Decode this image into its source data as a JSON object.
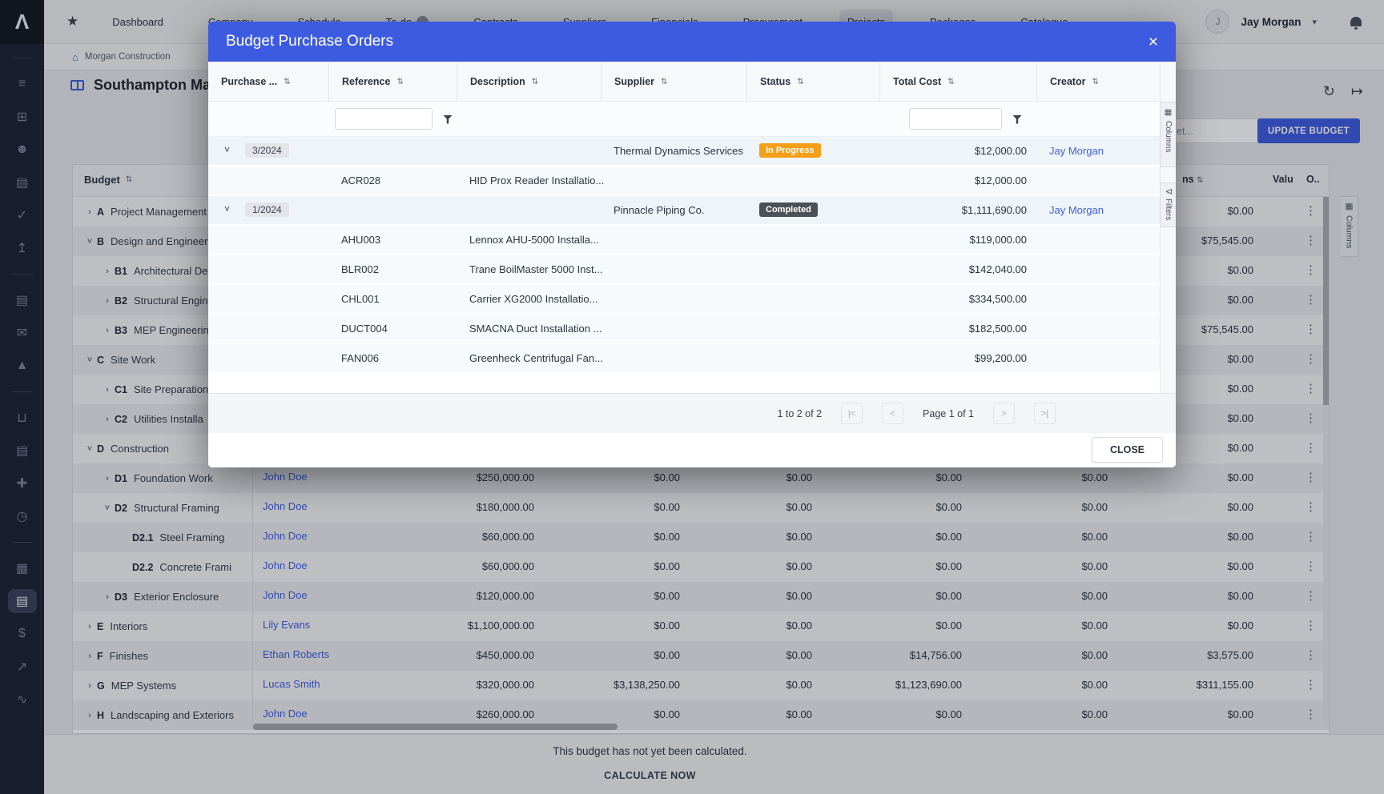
{
  "icons": {
    "star": "★",
    "bell": "bell",
    "chevron_down": "˅",
    "chevron_right": "›",
    "close": "×",
    "kebab": "⋮",
    "sort": "⇅",
    "refresh": "↻",
    "export": "↦",
    "bank": "⌂",
    "columns_tab": "▦",
    "filter_tab": "∇"
  },
  "colors": {
    "accent": "#3d5be0",
    "modal_header": "#3d5be0",
    "link": "#3f5dde",
    "in_progress": "#f59e18",
    "completed": "#4b5157"
  },
  "topnav": {
    "active": "Projects",
    "items": [
      {
        "label": "Dashboard"
      },
      {
        "label": "Company"
      },
      {
        "label": "Schedule"
      },
      {
        "label": "To-do",
        "badge": ""
      },
      {
        "label": "Contracts"
      },
      {
        "label": "Suppliers"
      },
      {
        "label": "Financials"
      },
      {
        "label": "Procurement"
      },
      {
        "label": "Projects"
      },
      {
        "label": "Packages"
      },
      {
        "label": "Catalogue"
      }
    ],
    "user": {
      "initial": "J",
      "name": "Jay Morgan"
    }
  },
  "sidebar": {
    "items": [
      {
        "type": "divider"
      },
      {
        "name": "sidebar-list-icon",
        "glyph": "≡"
      },
      {
        "name": "sidebar-workflow-icon",
        "glyph": "⊞"
      },
      {
        "name": "sidebar-people-icon",
        "glyph": "☻"
      },
      {
        "name": "sidebar-document-icon",
        "glyph": "▤"
      },
      {
        "name": "sidebar-approvals-icon",
        "glyph": "✓"
      },
      {
        "name": "sidebar-file-upload-icon",
        "glyph": "↥"
      },
      {
        "type": "divider"
      },
      {
        "name": "sidebar-contracts-icon",
        "glyph": "▤"
      },
      {
        "name": "sidebar-chat-icon",
        "glyph": "✉"
      },
      {
        "name": "sidebar-risk-icon",
        "glyph": "▲"
      },
      {
        "type": "divider"
      },
      {
        "name": "sidebar-procurement-icon",
        "glyph": "⊔"
      },
      {
        "name": "sidebar-invoices-icon",
        "glyph": "▤"
      },
      {
        "name": "sidebar-integrations-icon",
        "glyph": "✚"
      },
      {
        "name": "sidebar-time-icon",
        "glyph": "◷"
      },
      {
        "type": "divider"
      },
      {
        "name": "sidebar-dashboard-icon",
        "glyph": "▦"
      },
      {
        "name": "sidebar-budget-icon",
        "glyph": "▤",
        "active": true
      },
      {
        "name": "sidebar-finance-icon",
        "glyph": "$"
      },
      {
        "name": "sidebar-trend-icon",
        "glyph": "↗"
      },
      {
        "name": "sidebar-activity-icon",
        "glyph": "∿"
      }
    ]
  },
  "page": {
    "breadcrumb": "Morgan Construction",
    "title": "Southampton Ma",
    "search_value": "et...",
    "update_button": "UPDATE BUDGET",
    "columns_tab": "Columns",
    "note": "This budget has not yet been calculated.",
    "calculate_button": "CALCULATE NOW"
  },
  "budget_table": {
    "header": "Budget",
    "header_fragments": [
      "ns",
      "Valu",
      "O.."
    ],
    "rows": [
      {
        "code": "A",
        "name": "Project Management",
        "level": 0,
        "chevron": "›",
        "owner": "",
        "values": [
          "",
          "",
          "",
          "",
          "",
          "$0.00"
        ]
      },
      {
        "code": "B",
        "name": "Design and Engineering",
        "level": 0,
        "chevron": "˅",
        "owner": "",
        "values": [
          "",
          "",
          "",
          "",
          "",
          "$75,545.00"
        ]
      },
      {
        "code": "B1",
        "name": "Architectural De",
        "level": 1,
        "chevron": "›",
        "owner": "",
        "values": [
          "",
          "",
          "",
          "",
          "",
          "$0.00"
        ]
      },
      {
        "code": "B2",
        "name": "Structural Engin",
        "level": 1,
        "chevron": "›",
        "owner": "",
        "values": [
          "",
          "",
          "",
          "",
          "",
          "$0.00"
        ]
      },
      {
        "code": "B3",
        "name": "MEP Engineerin",
        "level": 1,
        "chevron": "›",
        "owner": "",
        "values": [
          "",
          "",
          "",
          "",
          "",
          "$75,545.00"
        ]
      },
      {
        "code": "C",
        "name": "Site Work",
        "level": 0,
        "chevron": "˅",
        "owner": "",
        "values": [
          "",
          "",
          "",
          "",
          "",
          "$0.00"
        ]
      },
      {
        "code": "C1",
        "name": "Site Preparation",
        "level": 1,
        "chevron": "›",
        "owner": "",
        "values": [
          "",
          "",
          "",
          "",
          "",
          "$0.00"
        ]
      },
      {
        "code": "C2",
        "name": "Utilities Installa",
        "level": 1,
        "chevron": "›",
        "owner": "",
        "values": [
          "",
          "",
          "",
          "",
          "",
          "$0.00"
        ]
      },
      {
        "code": "D",
        "name": "Construction",
        "level": 0,
        "chevron": "˅",
        "owner": "",
        "values": [
          "",
          "",
          "",
          "",
          "",
          "$0.00"
        ]
      },
      {
        "code": "D1",
        "name": "Foundation Work",
        "level": 1,
        "chevron": "›",
        "owner": "John Doe",
        "values": [
          "$250,000.00",
          "$0.00",
          "$0.00",
          "$0.00",
          "$0.00",
          "$0.00"
        ]
      },
      {
        "code": "D2",
        "name": "Structural Framing",
        "level": 1,
        "chevron": "˅",
        "owner": "John Doe",
        "values": [
          "$180,000.00",
          "$0.00",
          "$0.00",
          "$0.00",
          "$0.00",
          "$0.00"
        ]
      },
      {
        "code": "D2.1",
        "name": "Steel Framing",
        "level": 2,
        "chevron": "",
        "owner": "John Doe",
        "values": [
          "$60,000.00",
          "$0.00",
          "$0.00",
          "$0.00",
          "$0.00",
          "$0.00"
        ]
      },
      {
        "code": "D2.2",
        "name": "Concrete Frami",
        "level": 2,
        "chevron": "",
        "owner": "John Doe",
        "values": [
          "$60,000.00",
          "$0.00",
          "$0.00",
          "$0.00",
          "$0.00",
          "$0.00"
        ]
      },
      {
        "code": "D3",
        "name": "Exterior Enclosure",
        "level": 1,
        "chevron": "›",
        "owner": "John Doe",
        "values": [
          "$120,000.00",
          "$0.00",
          "$0.00",
          "$0.00",
          "$0.00",
          "$0.00"
        ]
      },
      {
        "code": "E",
        "name": "Interiors",
        "level": 0,
        "chevron": "›",
        "owner": "Lily Evans",
        "values": [
          "$1,100,000.00",
          "$0.00",
          "$0.00",
          "$0.00",
          "$0.00",
          "$0.00"
        ]
      },
      {
        "code": "F",
        "name": "Finishes",
        "level": 0,
        "chevron": "›",
        "owner": "Ethan Roberts",
        "values": [
          "$450,000.00",
          "$0.00",
          "$0.00",
          "$14,756.00",
          "$0.00",
          "$3,575.00"
        ]
      },
      {
        "code": "G",
        "name": "MEP Systems",
        "level": 0,
        "chevron": "›",
        "owner": "Lucas Smith",
        "values": [
          "$320,000.00",
          "$3,138,250.00",
          "$0.00",
          "$1,123,690.00",
          "$0.00",
          "$311,155.00"
        ]
      },
      {
        "code": "H",
        "name": "Landscaping and Exteriors",
        "level": 0,
        "chevron": "›",
        "owner": "John Doe",
        "values": [
          "$260,000.00",
          "$0.00",
          "$0.00",
          "$0.00",
          "$0.00",
          "$0.00"
        ]
      }
    ]
  },
  "modal": {
    "title": "Budget Purchase Orders",
    "columns": [
      "Purchase ...",
      "Reference",
      "Description",
      "Supplier",
      "Status",
      "Total Cost",
      "Creator"
    ],
    "rows": [
      {
        "type": "group",
        "period": "3/2024",
        "supplier": "Thermal Dynamics Services",
        "status": "In Progress",
        "status_color": "#f59e18",
        "total": "$12,000.00",
        "creator": "Jay Morgan"
      },
      {
        "type": "item",
        "reference": "ACR028",
        "description": "HID Prox Reader Installatio...",
        "total": "$12,000.00"
      },
      {
        "type": "group",
        "period": "1/2024",
        "supplier": "Pinnacle Piping Co.",
        "status": "Completed",
        "status_color": "#4b5157",
        "total": "$1,111,690.00",
        "creator": "Jay Morgan"
      },
      {
        "type": "item",
        "reference": "AHU003",
        "description": "Lennox AHU-5000 Installa...",
        "total": "$119,000.00"
      },
      {
        "type": "item",
        "reference": "BLR002",
        "description": "Trane BoilMaster 5000 Inst...",
        "total": "$142,040.00"
      },
      {
        "type": "item",
        "reference": "CHL001",
        "description": "Carrier XG2000 Installatio...",
        "total": "$334,500.00"
      },
      {
        "type": "item",
        "reference": "DUCT004",
        "description": "SMACNA Duct Installation ...",
        "total": "$182,500.00"
      },
      {
        "type": "item",
        "reference": "FAN006",
        "description": "Greenheck Centrifugal Fan...",
        "total": "$99,200.00"
      }
    ],
    "pagination": {
      "range": "1 to 2 of 2",
      "page": "Page 1 of 1",
      "first": "|<",
      "prev": "<",
      "next": ">",
      "last": ">|"
    },
    "close_button": "CLOSE",
    "tabs": [
      "Columns",
      "Filters"
    ]
  }
}
